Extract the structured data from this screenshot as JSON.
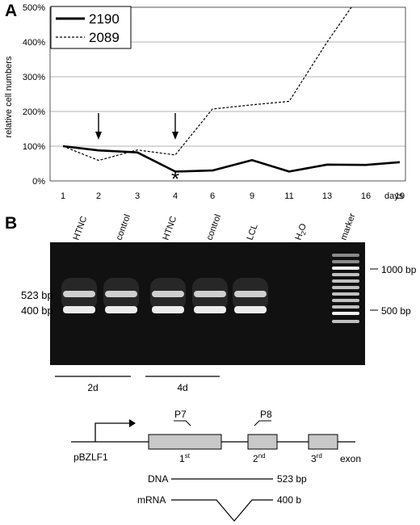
{
  "panelA": {
    "label": "A",
    "chart_data": {
      "type": "line",
      "ylabel": "relative cell numbers",
      "x_unit": "days",
      "categories": [
        "1",
        "2",
        "3",
        "4",
        "6",
        "9",
        "11",
        "13",
        "16",
        "19"
      ],
      "y_ticks": [
        "0%",
        "100%",
        "200%",
        "300%",
        "400%",
        "500%"
      ],
      "ylim": [
        0,
        500
      ],
      "grid": true,
      "legend_position": "top-left",
      "series": [
        {
          "name": "2190",
          "style": "solid",
          "values": [
            100,
            88,
            82,
            27,
            30,
            60,
            27,
            47,
            46,
            54
          ]
        },
        {
          "name": "2089",
          "style": "dashed",
          "values": [
            100,
            59,
            89,
            75,
            207,
            219,
            229,
            400,
            560,
            null
          ]
        }
      ],
      "arrows_at": [
        "2",
        "4"
      ],
      "annotation": {
        "text": "*",
        "x": "4",
        "y": 20
      }
    }
  },
  "panelB": {
    "label": "B",
    "lanes": [
      "HTNC",
      "control",
      "HTNC",
      "control",
      "LCL",
      "H2O",
      "marker"
    ],
    "h2o_label": {
      "main": "H",
      "sub": "2",
      "rest": "O"
    },
    "left_labels": [
      "523 bp",
      "400 bp"
    ],
    "right_labels": [
      "1000 bp",
      "500 bp"
    ],
    "groups": [
      "2d",
      "4d"
    ],
    "colors": {
      "gel_background": "#111111",
      "band": "#e8e8e8"
    }
  },
  "diagram": {
    "promoter": "pBZLF1",
    "primers": [
      "P7",
      "P8"
    ],
    "exons": [
      {
        "num": "1",
        "sup": "st"
      },
      {
        "num": "2",
        "sup": "nd"
      },
      {
        "num": "3",
        "sup": "rd"
      }
    ],
    "exon_label": "exon",
    "products": [
      {
        "label": "DNA",
        "size": "523 bp"
      },
      {
        "label": "mRNA",
        "size": "400 b"
      }
    ]
  }
}
